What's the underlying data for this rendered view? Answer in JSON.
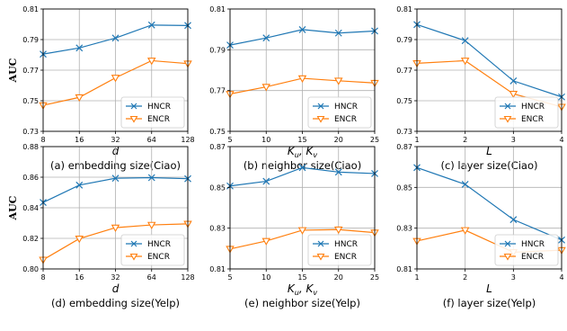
{
  "colors": {
    "HNCR": "#1f77b4",
    "ENCR": "#ff7f0e",
    "grid": "#b0b0b0"
  },
  "chart_data": [
    {
      "type": "line",
      "caption": "(a) embedding size(Ciao)",
      "xlabel": "d",
      "ylabel": "AUC",
      "categories": [
        "8",
        "16",
        "32",
        "64",
        "128"
      ],
      "ylim": [
        0.73,
        0.81
      ],
      "yticks": [
        "0.73",
        "0.75",
        "0.77",
        "0.79",
        "0.81"
      ],
      "grid": true,
      "legend": "bottom-right",
      "series": [
        {
          "name": "HNCR",
          "marker": "x",
          "values": [
            0.7805,
            0.7845,
            0.791,
            0.7995,
            0.7992
          ]
        },
        {
          "name": "ENCR",
          "marker": "triangle-down",
          "values": [
            0.747,
            0.7522,
            0.765,
            0.7762,
            0.7743
          ]
        }
      ]
    },
    {
      "type": "line",
      "caption": "(b) neighbor size(Ciao)",
      "xlabel": "Ku, Kv",
      "categories": [
        "5",
        "10",
        "15",
        "20",
        "25"
      ],
      "ylim": [
        0.75,
        0.81
      ],
      "yticks": [
        "0.75",
        "0.77",
        "0.79",
        "0.81"
      ],
      "grid": true,
      "legend": "bottom-right",
      "series": [
        {
          "name": "HNCR",
          "marker": "x",
          "values": [
            0.7923,
            0.7958,
            0.7999,
            0.7982,
            0.7992
          ]
        },
        {
          "name": "ENCR",
          "marker": "triangle-down",
          "values": [
            0.7683,
            0.7718,
            0.776,
            0.7748,
            0.7737
          ]
        }
      ]
    },
    {
      "type": "line",
      "caption": "(c) layer size(Ciao)",
      "xlabel": "L",
      "categories": [
        "1",
        "2",
        "3",
        "4"
      ],
      "ylim": [
        0.73,
        0.81
      ],
      "yticks": [
        "0.73",
        "0.75",
        "0.77",
        "0.79",
        "0.81"
      ],
      "grid": true,
      "legend": "bottom-right",
      "series": [
        {
          "name": "HNCR",
          "marker": "x",
          "values": [
            0.7998,
            0.7893,
            0.763,
            0.7525
          ]
        },
        {
          "name": "ENCR",
          "marker": "triangle-down",
          "values": [
            0.7745,
            0.7762,
            0.7545,
            0.746
          ]
        }
      ]
    },
    {
      "type": "line",
      "caption": "(d) embedding size(Yelp)",
      "xlabel": "d",
      "ylabel": "AUC",
      "categories": [
        "8",
        "16",
        "32",
        "64",
        "128"
      ],
      "ylim": [
        0.8,
        0.88
      ],
      "yticks": [
        "0.80",
        "0.82",
        "0.84",
        "0.86",
        "0.88"
      ],
      "grid": true,
      "legend": "bottom-right",
      "series": [
        {
          "name": "HNCR",
          "marker": "x",
          "values": [
            0.8435,
            0.8548,
            0.8593,
            0.8597,
            0.859
          ]
        },
        {
          "name": "ENCR",
          "marker": "triangle-down",
          "values": [
            0.806,
            0.8198,
            0.827,
            0.8288,
            0.8295
          ]
        }
      ]
    },
    {
      "type": "line",
      "caption": "(e) neighbor size(Yelp)",
      "xlabel": "Ku, Kv",
      "categories": [
        "5",
        "10",
        "15",
        "20",
        "25"
      ],
      "ylim": [
        0.81,
        0.87
      ],
      "yticks": [
        "0.81",
        "0.83",
        "0.85",
        "0.87"
      ],
      "grid": true,
      "legend": "bottom-right",
      "series": [
        {
          "name": "HNCR",
          "marker": "x",
          "values": [
            0.8507,
            0.853,
            0.8597,
            0.8575,
            0.8568
          ]
        },
        {
          "name": "ENCR",
          "marker": "triangle-down",
          "values": [
            0.8198,
            0.8237,
            0.829,
            0.8293,
            0.8278
          ]
        }
      ]
    },
    {
      "type": "line",
      "caption": "(f) layer size(Yelp)",
      "xlabel": "L",
      "categories": [
        "1",
        "2",
        "3",
        "4"
      ],
      "ylim": [
        0.81,
        0.87
      ],
      "yticks": [
        "0.81",
        "0.83",
        "0.85",
        "0.87"
      ],
      "grid": true,
      "legend": "bottom-right",
      "series": [
        {
          "name": "HNCR",
          "marker": "x",
          "values": [
            0.8597,
            0.8515,
            0.8342,
            0.8242
          ]
        },
        {
          "name": "ENCR",
          "marker": "triangle-down",
          "values": [
            0.8237,
            0.829,
            0.8182,
            0.8192
          ]
        }
      ]
    }
  ]
}
